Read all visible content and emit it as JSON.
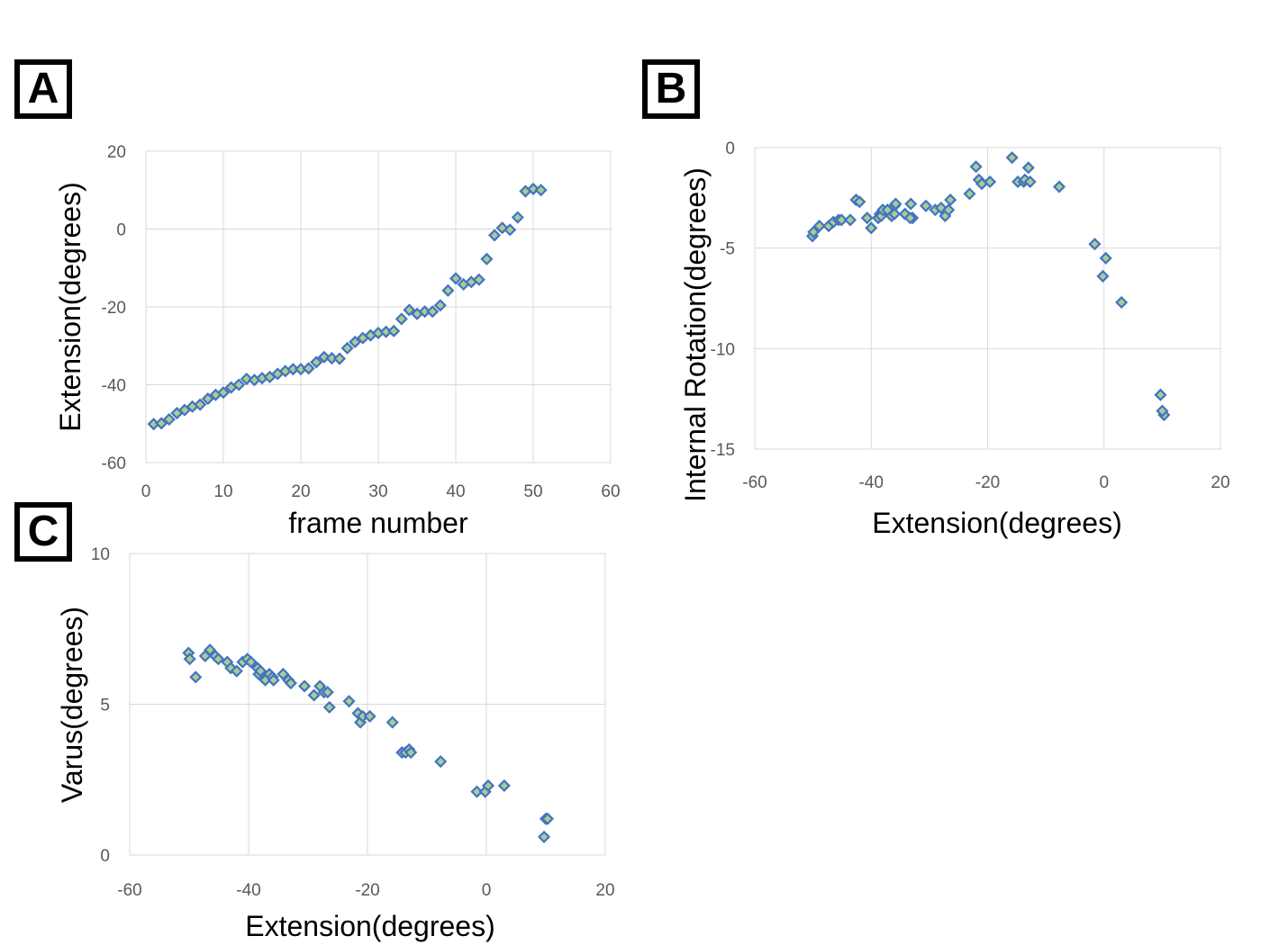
{
  "panels": {
    "a": "A",
    "b": "B",
    "c": "C"
  },
  "colors": {
    "marker_fill": "#a6cf8e",
    "marker_stroke": "#4472c4",
    "grid": "#d9d9d9",
    "tick_text": "#595959",
    "axis_title": "#000000"
  },
  "chart_data": [
    {
      "type": "scatter",
      "panel": "A",
      "title": "",
      "xlabel": "frame number",
      "ylabel": "Extension(degrees)",
      "xlim": [
        0,
        60
      ],
      "ylim": [
        -60,
        20
      ],
      "xticks": [
        0,
        10,
        20,
        30,
        40,
        50,
        60
      ],
      "yticks": [
        -60,
        -40,
        -20,
        0,
        20
      ],
      "xtick_labels": [
        "0",
        "10",
        "20",
        "30",
        "40",
        "50",
        "60"
      ],
      "ytick_labels": [
        "-60",
        "-40",
        "-20",
        "0",
        "20"
      ],
      "grid": true,
      "points": [
        [
          1,
          -50.1
        ],
        [
          2,
          -49.9
        ],
        [
          3,
          -48.9
        ],
        [
          4,
          -47.3
        ],
        [
          5,
          -46.5
        ],
        [
          6,
          -45.6
        ],
        [
          7,
          -45.1
        ],
        [
          8,
          -43.6
        ],
        [
          9,
          -42.6
        ],
        [
          10,
          -42
        ],
        [
          11,
          -40.7
        ],
        [
          12,
          -40
        ],
        [
          13,
          -38.5
        ],
        [
          14,
          -38.8
        ],
        [
          15,
          -38.3
        ],
        [
          16,
          -38
        ],
        [
          17,
          -37.2
        ],
        [
          18,
          -36.5
        ],
        [
          19,
          -36
        ],
        [
          20,
          -36
        ],
        [
          21,
          -35.8
        ],
        [
          22,
          -34.2
        ],
        [
          23,
          -32.9
        ],
        [
          24,
          -33.2
        ],
        [
          25,
          -33.3
        ],
        [
          26,
          -30.6
        ],
        [
          27,
          -29
        ],
        [
          28,
          -28
        ],
        [
          29,
          -27.3
        ],
        [
          30,
          -26.7
        ],
        [
          31,
          -26.4
        ],
        [
          32,
          -26.2
        ],
        [
          33,
          -23.1
        ],
        [
          34,
          -20.8
        ],
        [
          35,
          -21.8
        ],
        [
          36,
          -21.2
        ],
        [
          37,
          -21.2
        ],
        [
          38,
          -19.6
        ],
        [
          39,
          -15.8
        ],
        [
          40,
          -12.7
        ],
        [
          41,
          -14.2
        ],
        [
          42,
          -13.6
        ],
        [
          43,
          -13
        ],
        [
          44,
          -7.7
        ],
        [
          45,
          -1.6
        ],
        [
          46,
          0.3
        ],
        [
          47,
          -0.2
        ],
        [
          48,
          3
        ],
        [
          49,
          9.7
        ],
        [
          50,
          10.3
        ],
        [
          51,
          10
        ]
      ]
    },
    {
      "type": "scatter",
      "panel": "B",
      "title": "",
      "xlabel": "Extension(degrees)",
      "ylabel": "Internal Rotation(degrees)",
      "xlim": [
        -60,
        20
      ],
      "ylim": [
        -15,
        0
      ],
      "xticks": [
        -60,
        -40,
        -20,
        0,
        20
      ],
      "yticks": [
        -15,
        -10,
        -5,
        0
      ],
      "xtick_labels": [
        "-60",
        "-40",
        "-20",
        "0",
        "20"
      ],
      "ytick_labels": [
        "-15",
        "-10",
        "-5",
        "0"
      ],
      "grid": true,
      "points": [
        [
          -50.1,
          -4.4
        ],
        [
          -49.9,
          -4.2
        ],
        [
          -48.9,
          -3.9
        ],
        [
          -47.3,
          -3.9
        ],
        [
          -46.5,
          -3.7
        ],
        [
          -45.6,
          -3.6
        ],
        [
          -45.1,
          -3.6
        ],
        [
          -43.6,
          -3.6
        ],
        [
          -42.6,
          -2.6
        ],
        [
          -42,
          -2.7
        ],
        [
          -40.7,
          -3.5
        ],
        [
          -40,
          -4
        ],
        [
          -38.5,
          -3.3
        ],
        [
          -38.8,
          -3.5
        ],
        [
          -38.3,
          -3.4
        ],
        [
          -38,
          -3.1
        ],
        [
          -37.2,
          -3.1
        ],
        [
          -36.5,
          -3.4
        ],
        [
          -36,
          -2.9
        ],
        [
          -36,
          -3.3
        ],
        [
          -35.8,
          -2.8
        ],
        [
          -34.2,
          -3.3
        ],
        [
          -32.9,
          -3.5
        ],
        [
          -33.2,
          -2.8
        ],
        [
          -33.3,
          -3.5
        ],
        [
          -30.6,
          -2.9
        ],
        [
          -29,
          -3.1
        ],
        [
          -28,
          -3
        ],
        [
          -27.3,
          -3.4
        ],
        [
          -26.7,
          -3.1
        ],
        [
          -26.4,
          -2.6
        ],
        [
          -23.1,
          -2.3
        ],
        [
          -22,
          -0.95
        ],
        [
          -21.5,
          -1.6
        ],
        [
          -21,
          -1.8
        ],
        [
          -19.6,
          -1.7
        ],
        [
          -15.8,
          -0.5
        ],
        [
          -14.8,
          -1.7
        ],
        [
          -13.8,
          -1.7
        ],
        [
          -13.6,
          -1.6
        ],
        [
          -13,
          -1
        ],
        [
          -12.7,
          -1.7
        ],
        [
          -7.7,
          -1.95
        ],
        [
          -1.6,
          -4.8
        ],
        [
          0.3,
          -5.5
        ],
        [
          -0.2,
          -6.4
        ],
        [
          3,
          -7.7
        ],
        [
          9.7,
          -12.3
        ],
        [
          10.3,
          -13.3
        ],
        [
          10,
          -13.1
        ]
      ]
    },
    {
      "type": "scatter",
      "panel": "C",
      "title": "",
      "xlabel": "Extension(degrees)",
      "ylabel": "Varus(degrees)",
      "xlim": [
        -60,
        20
      ],
      "ylim": [
        0,
        10
      ],
      "xticks": [
        -60,
        -40,
        -20,
        0,
        20
      ],
      "yticks": [
        0,
        5,
        10
      ],
      "xtick_labels": [
        "-60",
        "-40",
        "-20",
        "0",
        "20"
      ],
      "ytick_labels": [
        "0",
        "5",
        "10"
      ],
      "grid": true,
      "points": [
        [
          -50.1,
          6.7
        ],
        [
          -49.9,
          6.5
        ],
        [
          -48.9,
          5.9
        ],
        [
          -47.3,
          6.6
        ],
        [
          -46.5,
          6.8
        ],
        [
          -45.6,
          6.6
        ],
        [
          -45.1,
          6.5
        ],
        [
          -43.6,
          6.4
        ],
        [
          -43,
          6.2
        ],
        [
          -42,
          6.1
        ],
        [
          -41,
          6.4
        ],
        [
          -40.2,
          6.5
        ],
        [
          -39.6,
          6.4
        ],
        [
          -38.5,
          6.2
        ],
        [
          -38.3,
          6
        ],
        [
          -38,
          6.1
        ],
        [
          -37.2,
          5.8
        ],
        [
          -36.5,
          6
        ],
        [
          -36,
          5.9
        ],
        [
          -35.8,
          5.8
        ],
        [
          -34.2,
          6
        ],
        [
          -33.3,
          5.8
        ],
        [
          -32.9,
          5.7
        ],
        [
          -30.6,
          5.6
        ],
        [
          -29,
          5.3
        ],
        [
          -28,
          5.6
        ],
        [
          -27.3,
          5.4
        ],
        [
          -26.7,
          5.4
        ],
        [
          -26.4,
          4.9
        ],
        [
          -23.1,
          5.1
        ],
        [
          -21.6,
          4.7
        ],
        [
          -21.2,
          4.4
        ],
        [
          -20.8,
          4.6
        ],
        [
          -19.6,
          4.6
        ],
        [
          -15.8,
          4.4
        ],
        [
          -14.2,
          3.4
        ],
        [
          -13.6,
          3.4
        ],
        [
          -13,
          3.5
        ],
        [
          -12.7,
          3.4
        ],
        [
          -7.7,
          3.1
        ],
        [
          -1.6,
          2.1
        ],
        [
          -0.2,
          2.1
        ],
        [
          0.3,
          2.3
        ],
        [
          3,
          2.3
        ],
        [
          9.7,
          0.6
        ],
        [
          10,
          1.2
        ],
        [
          10.3,
          1.2
        ]
      ]
    }
  ]
}
